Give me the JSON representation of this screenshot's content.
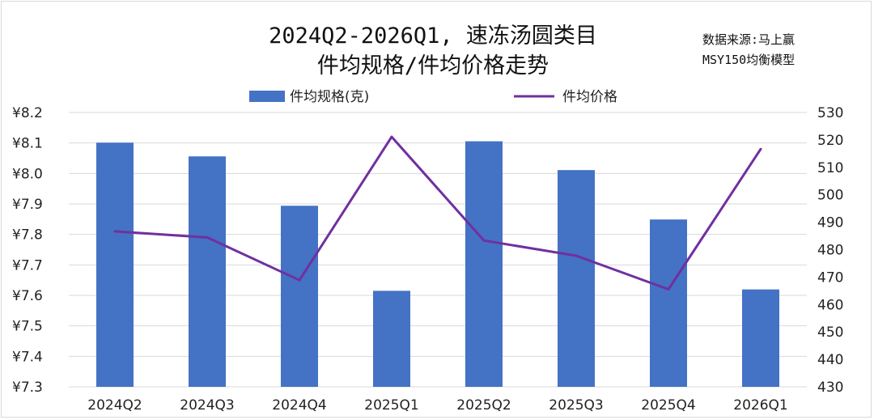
{
  "chart_data": {
    "type": "bar",
    "title_line1": "2024Q2-2026Q1, 速冻汤圆类目",
    "title_line2": "件均规格/件均价格走势",
    "source_line1": "数据来源:马上赢",
    "source_line2": "MSY150均衡模型",
    "categories": [
      "2024Q2",
      "2024Q3",
      "2024Q4",
      "2025Q1",
      "2025Q2",
      "2025Q3",
      "2025Q4",
      "2026Q1"
    ],
    "series": [
      {
        "name": "件均规格(克)",
        "type": "bar",
        "axis": "right",
        "color": "#4472C4",
        "values": [
          519,
          514,
          496,
          465,
          519.5,
          509,
          491,
          465.5
        ]
      },
      {
        "name": "件均价格",
        "type": "line",
        "axis": "left",
        "color": "#7030A0",
        "values": [
          7.81,
          7.79,
          7.65,
          8.12,
          7.78,
          7.73,
          7.62,
          8.08
        ]
      }
    ],
    "left_axis": {
      "min": 7.3,
      "max": 8.2,
      "step": 0.1,
      "prefix": "¥",
      "ticks": [
        "¥7.3",
        "¥7.4",
        "¥7.5",
        "¥7.6",
        "¥7.7",
        "¥7.8",
        "¥7.9",
        "¥8.0",
        "¥8.1",
        "¥8.2"
      ]
    },
    "right_axis": {
      "min": 430,
      "max": 530,
      "step": 10,
      "ticks": [
        "430",
        "440",
        "450",
        "460",
        "470",
        "480",
        "490",
        "500",
        "510",
        "520",
        "530"
      ]
    },
    "grid": true,
    "legend_position": "top"
  }
}
